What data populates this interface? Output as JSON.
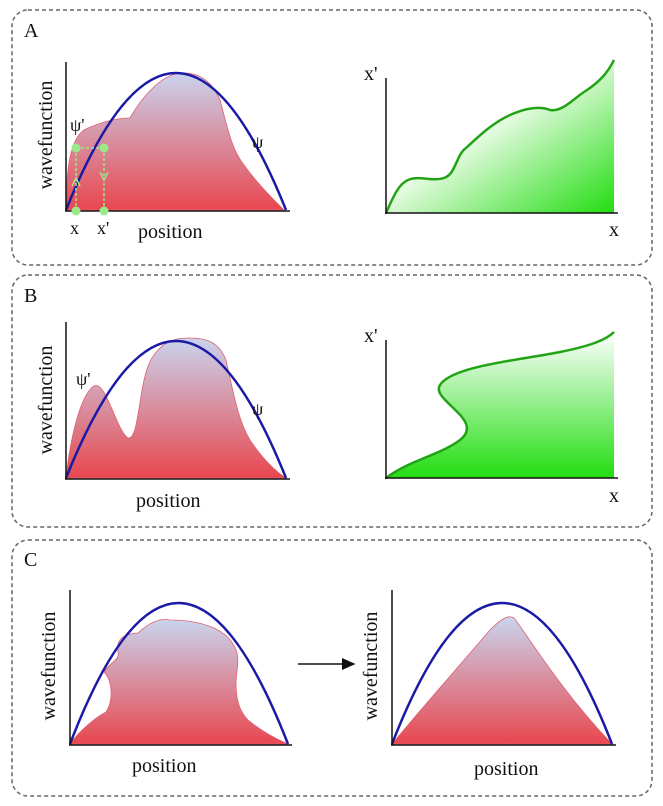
{
  "panels": [
    {
      "letter": "A",
      "left": {
        "ylabel": "wavefunction",
        "xlabel": "position",
        "psi_label": "ψ",
        "psi_prime_label": "ψ'",
        "x_label": "x",
        "x_prime_label": "x'"
      },
      "right": {
        "ylabel": "x'",
        "xlabel": "x"
      }
    },
    {
      "letter": "B",
      "left": {
        "ylabel": "wavefunction",
        "xlabel": "position",
        "psi_label": "ψ",
        "psi_prime_label": "ψ'"
      },
      "right": {
        "ylabel": "x'",
        "xlabel": "x"
      }
    },
    {
      "letter": "C",
      "left": {
        "ylabel": "wavefunction",
        "xlabel": "position"
      },
      "right": {
        "ylabel": "wavefunction",
        "xlabel": "position"
      }
    }
  ],
  "colors": {
    "psi_curve": "#1a1aa6",
    "psi_prime_fill_top": "#c9d4ee",
    "psi_prime_fill_bottom": "#e8474f",
    "mapping_fill_top": "#ffffff",
    "mapping_fill_bottom": "#33dd22",
    "mapping_curve": "#22a316",
    "marker": "#9be88a",
    "panel_border": "#666666"
  }
}
